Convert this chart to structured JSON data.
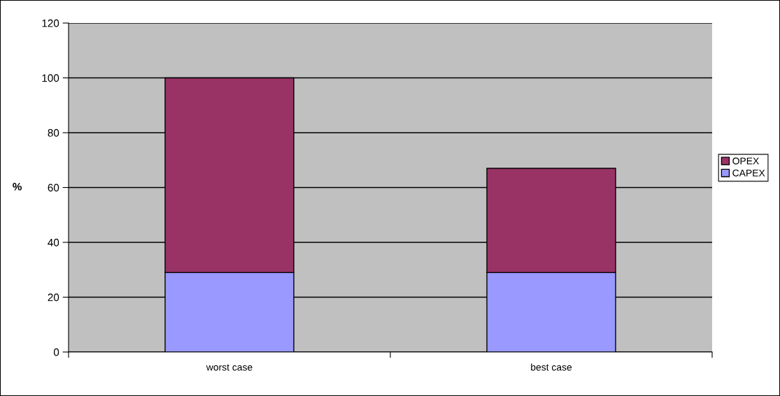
{
  "chart_data": {
    "type": "bar",
    "stacked": true,
    "categories": [
      "worst case",
      "best case"
    ],
    "ylabel": "%",
    "series": [
      {
        "name": "CAPEX",
        "color": "#9999ff",
        "values": [
          29,
          29
        ]
      },
      {
        "name": "OPEX",
        "color": "#993366",
        "values": [
          71,
          38
        ]
      }
    ],
    "ylim": [
      0,
      120
    ],
    "yticks": [
      0,
      20,
      40,
      60,
      80,
      100,
      120
    ],
    "grid": "y",
    "legend": "right"
  }
}
